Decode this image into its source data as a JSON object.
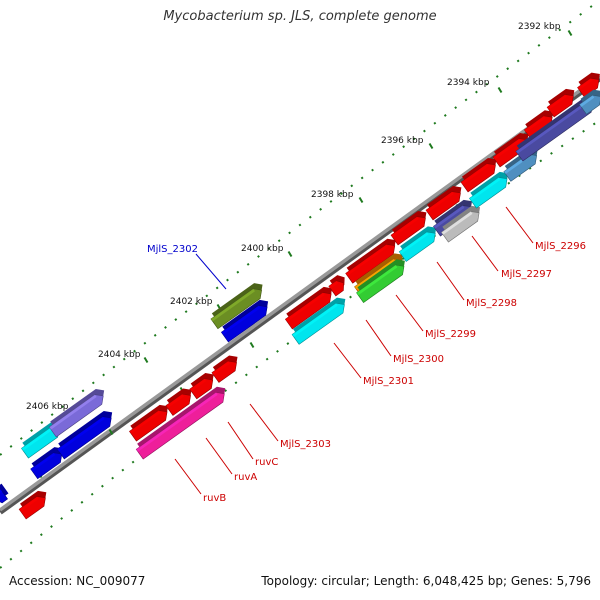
{
  "title": "Mycobacterium sp. JLS, complete genome",
  "accession": "Accession: NC_009077",
  "summary": "Topology: circular; Length: 6,048,425 bp; Genes: 5,796",
  "kbp_labels": [
    "2392 kbp",
    "2394 kbp",
    "2396 kbp",
    "2398 kbp",
    "2400 kbp",
    "2402 kbp",
    "2404 kbp",
    "2406 kbp"
  ],
  "gene_labels": [
    "MjlS_2302",
    "MjlS_2296",
    "MjlS_2297",
    "MjlS_2298",
    "MjlS_2299",
    "MjlS_2300",
    "MjlS_2301",
    "MjlS_2303",
    "ruvC",
    "ruvA",
    "ruvB"
  ],
  "colors": {
    "backbone": "#8a8a8a",
    "tick": "#1f7a1f",
    "label_red": "#cc0000",
    "label_blue": "#0000cc",
    "red": "#ee0000",
    "blue": "#0000dd",
    "cyan": "#00e5ee",
    "olive": "#6b8e23",
    "violet": "#7a6ad8",
    "magenta": "#ee1f9a",
    "orange": "#ee8800",
    "green": "#33cc33",
    "steel": "#4f8fc0",
    "slate": "#4a4aa0",
    "grey": "#bbbbbb"
  }
}
